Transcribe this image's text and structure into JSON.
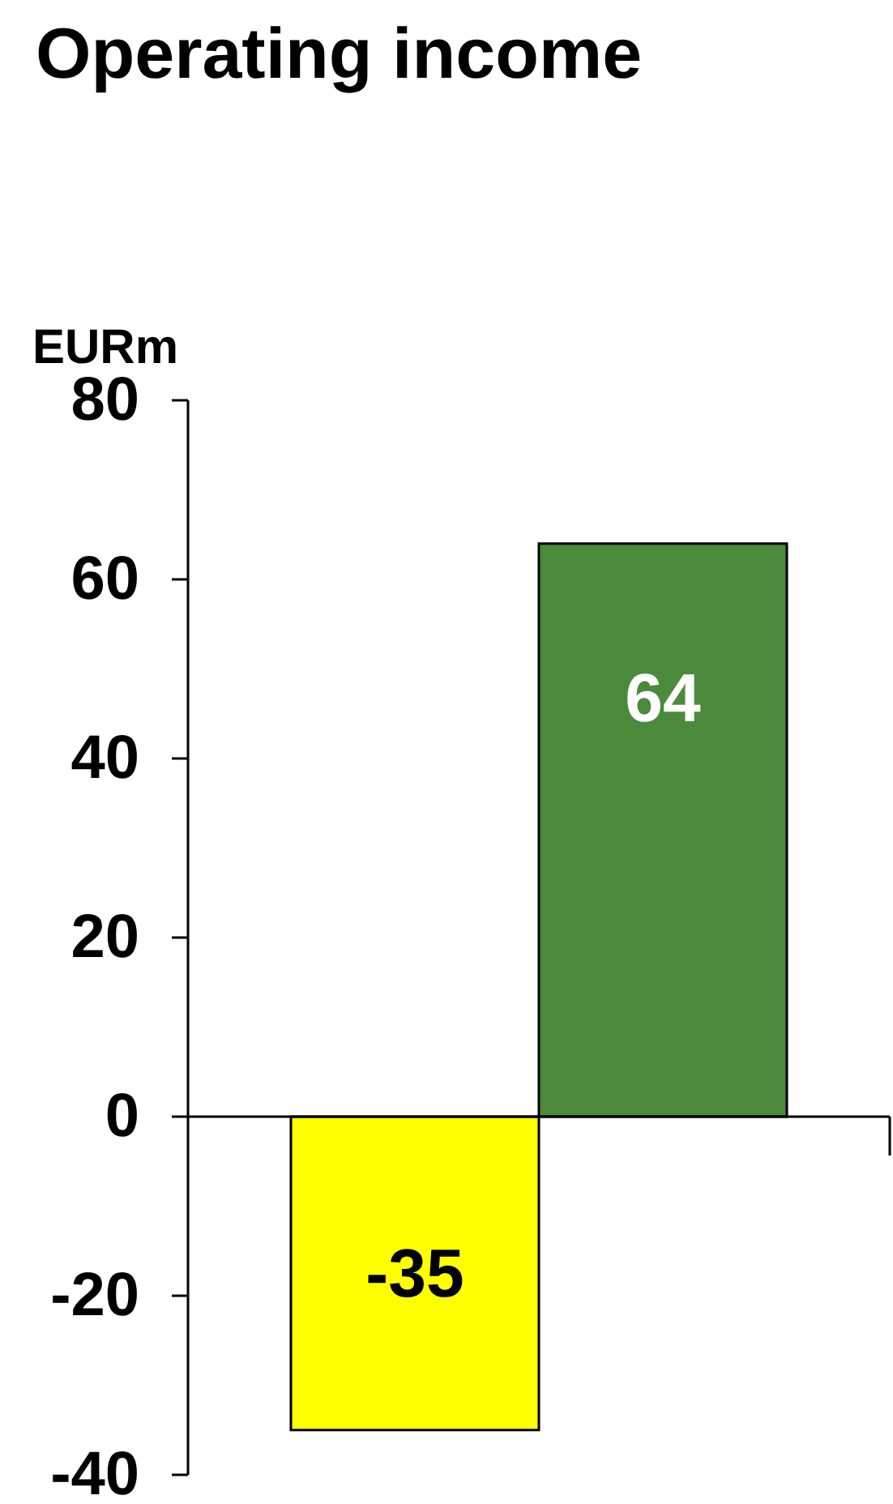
{
  "chart_data": {
    "type": "bar",
    "title": "Operating income",
    "ylabel": "EURm",
    "categories": [
      null,
      null
    ],
    "values": [
      -35,
      64
    ],
    "colors": [
      "#ffff00",
      "#4a8a3a"
    ],
    "ylim": [
      -40,
      80
    ],
    "yticks": [
      -40,
      -20,
      0,
      20,
      40,
      60,
      80
    ],
    "data_labels": true
  }
}
